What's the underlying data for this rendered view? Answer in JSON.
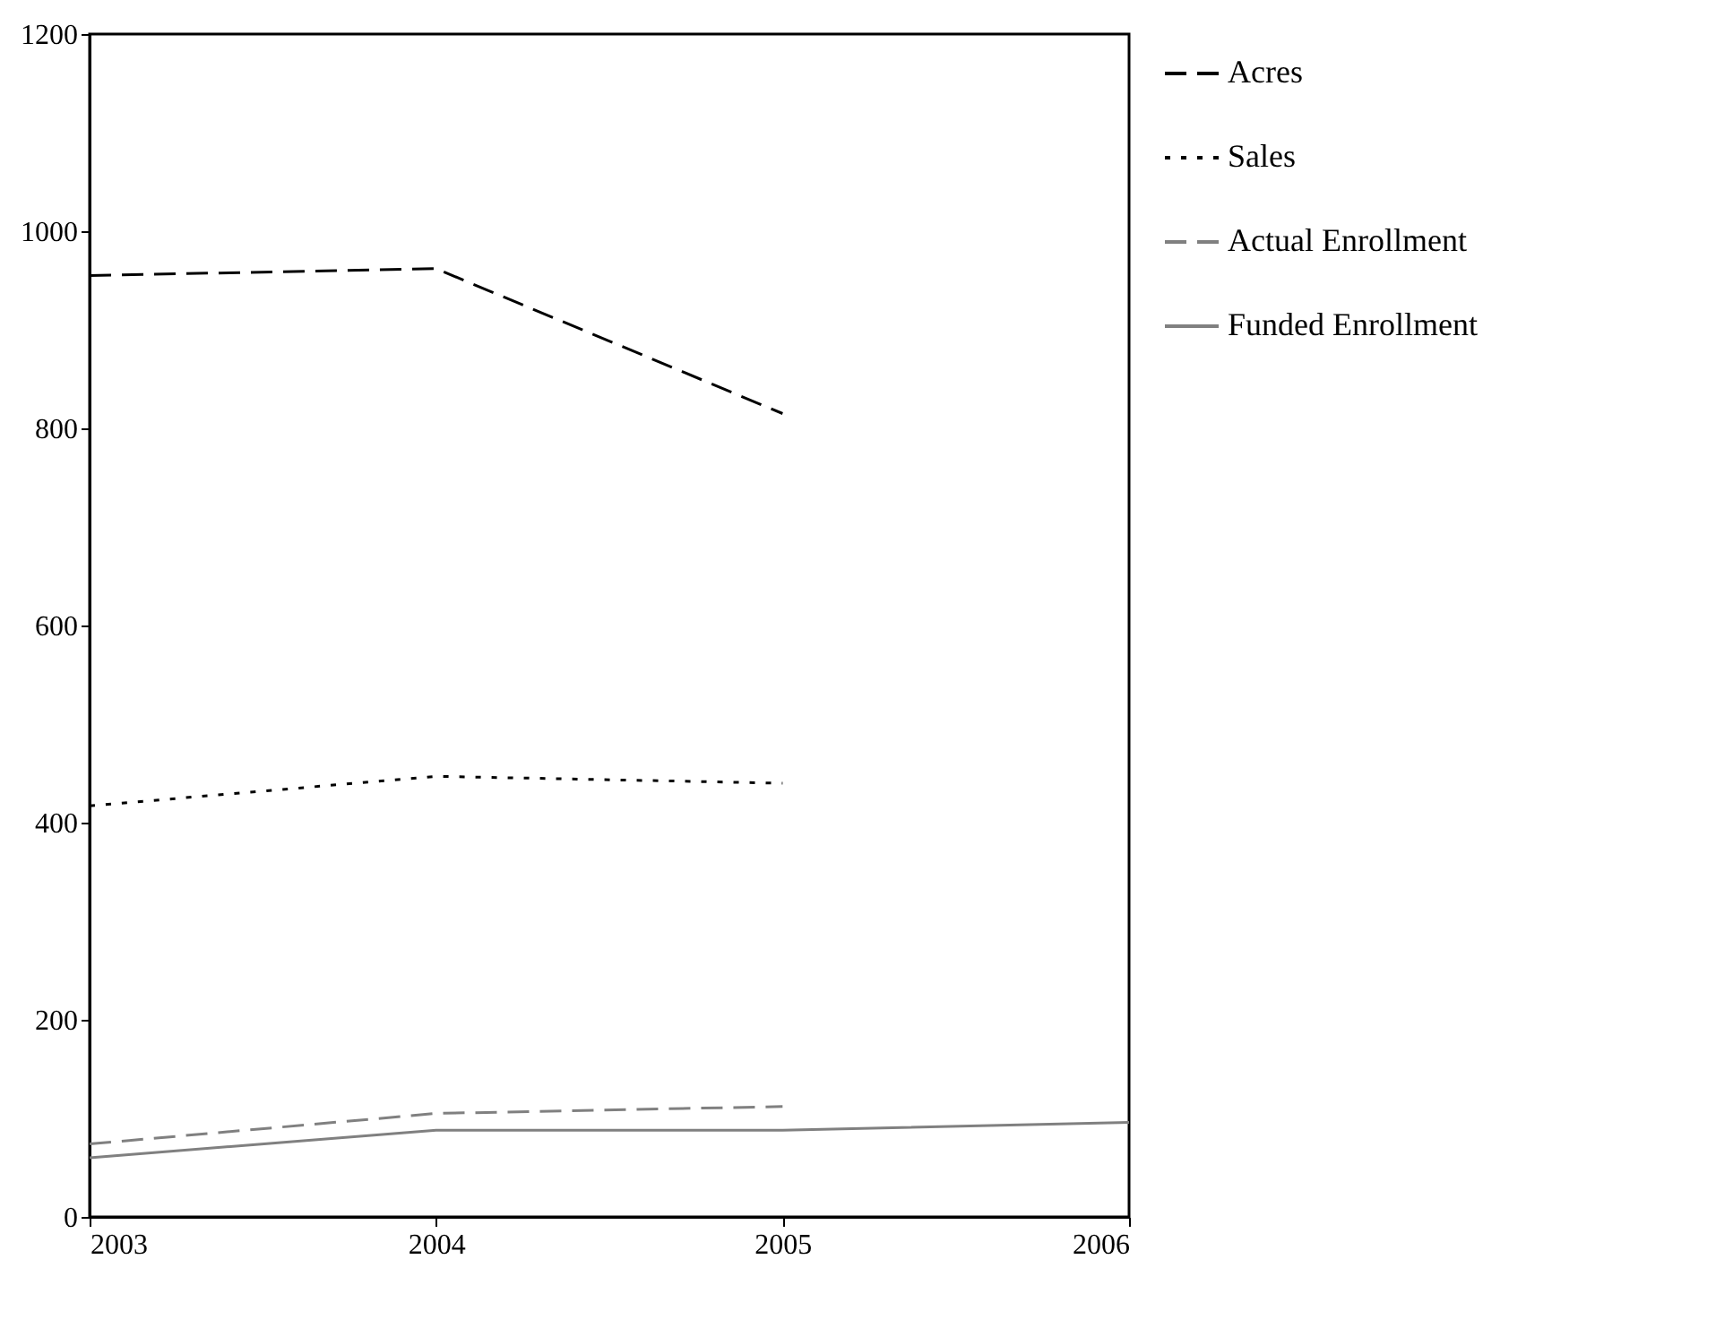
{
  "chart_data": {
    "type": "line",
    "x": [
      2003,
      2004,
      2005,
      2006
    ],
    "xlim": [
      2003,
      2006
    ],
    "xticks": [
      2003,
      2004,
      2005,
      2006
    ],
    "ylim": [
      0,
      1200
    ],
    "yticks": [
      0,
      200,
      400,
      600,
      800,
      1000,
      1200
    ],
    "grid": false,
    "legend": "right",
    "series": [
      {
        "name": "Acres",
        "color": "#000000",
        "line_style": "dashed",
        "values": [
          955,
          962,
          815,
          null
        ]
      },
      {
        "name": "Sales",
        "color": "#000000",
        "line_style": "dotted",
        "values": [
          417,
          447,
          440,
          null
        ]
      },
      {
        "name": "Actual Enrollment",
        "color": "#808080",
        "line_style": "dashed",
        "values": [
          74,
          105,
          112,
          null
        ]
      },
      {
        "name": "Funded Enrollment",
        "color": "#808080",
        "line_style": "solid",
        "values": [
          60,
          88,
          88,
          96
        ]
      }
    ]
  }
}
